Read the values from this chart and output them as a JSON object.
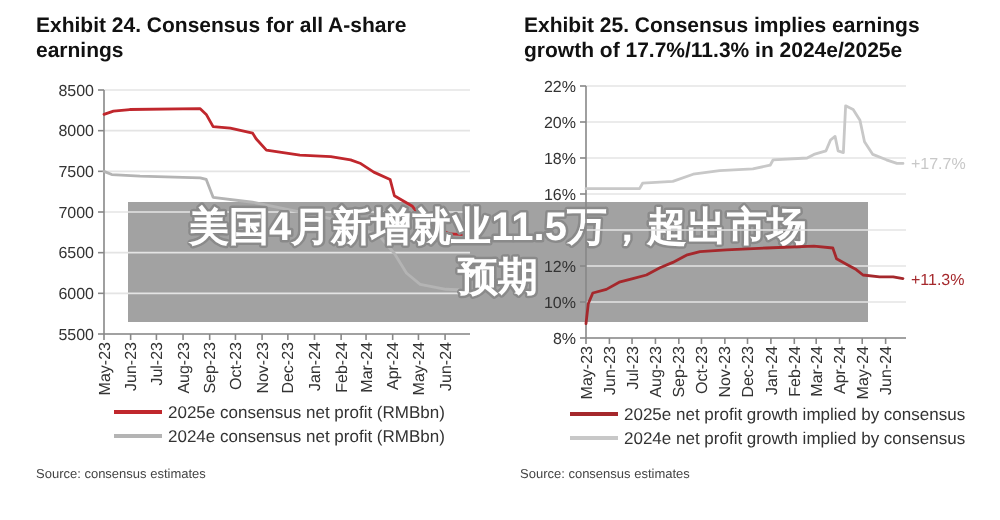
{
  "chart_data": [
    {
      "type": "line",
      "title": "Exhibit 24. Consensus for all A-share earnings",
      "xlim": [
        "2023-05-01",
        "2024-06-30"
      ],
      "ylim": [
        5500,
        8500
      ],
      "yticks": [
        5500,
        6000,
        6500,
        7000,
        7500,
        8000,
        8500
      ],
      "xticks": [
        {
          "value": "2023-05",
          "label": "May-23"
        },
        {
          "value": "2023-06",
          "label": "Jun-23"
        },
        {
          "value": "2023-07",
          "label": "Jul-23"
        },
        {
          "value": "2023-08",
          "label": "Aug-23"
        },
        {
          "value": "2023-09",
          "label": "Sep-23"
        },
        {
          "value": "2023-10",
          "label": "Oct-23"
        },
        {
          "value": "2023-11",
          "label": "Nov-23"
        },
        {
          "value": "2023-12",
          "label": "Dec-23"
        },
        {
          "value": "2024-01",
          "label": "Jan-24"
        },
        {
          "value": "2024-02",
          "label": "Feb-24"
        },
        {
          "value": "2024-03",
          "label": "Mar-24"
        },
        {
          "value": "2024-04",
          "label": "Apr-24"
        },
        {
          "value": "2024-05",
          "label": "May-24"
        },
        {
          "value": "2024-06",
          "label": "Jun-24"
        }
      ],
      "grid": "y",
      "legend": "bottom",
      "series": [
        {
          "name": "2025e consensus net profit (RMBbn)",
          "color": "#c0272d",
          "x": [
            "2023-05-01",
            "2023-05-12",
            "2023-05-31",
            "2023-08-21",
            "2023-08-28",
            "2023-09-05",
            "2023-09-25",
            "2023-10-21",
            "2023-10-25",
            "2023-11-06",
            "2023-12-15",
            "2024-01-20",
            "2024-02-12",
            "2024-02-23",
            "2024-03-10",
            "2024-03-29",
            "2024-04-03",
            "2024-04-24",
            "2024-05-10",
            "2024-06-07",
            "2024-06-28"
          ],
          "values": [
            8200,
            8240,
            8260,
            8270,
            8200,
            8050,
            8030,
            7970,
            7900,
            7760,
            7700,
            7680,
            7640,
            7600,
            7490,
            7400,
            7200,
            7070,
            6850,
            6730,
            6720
          ]
        },
        {
          "name": "2024e consensus net profit (RMBbn)",
          "color": "#b4b4b4",
          "x": [
            "2023-05-01",
            "2023-05-10",
            "2023-06-12",
            "2023-08-21",
            "2023-08-28",
            "2023-09-05",
            "2023-10-21",
            "2023-11-22",
            "2024-01-08",
            "2024-02-12",
            "2024-03-17",
            "2024-04-03",
            "2024-04-17",
            "2024-05-03",
            "2024-06-02",
            "2024-06-28"
          ],
          "values": [
            7500,
            7460,
            7440,
            7420,
            7400,
            7180,
            7120,
            7050,
            6950,
            6850,
            6700,
            6490,
            6250,
            6110,
            6050,
            6040
          ]
        }
      ],
      "annotations": [
        "Source: consensus estimates",
        "美国4月新增就业11.5万，超出市场预期"
      ]
    },
    {
      "type": "line",
      "title": "Exhibit 25. Consensus implies earnings growth of 17.7%/11.3% in 2024e/2025e",
      "xlim": [
        "2023-05-01",
        "2024-06-28"
      ],
      "ylim": [
        8,
        22
      ],
      "yticks": [
        {
          "value": 8,
          "label": "8%"
        },
        {
          "value": 10,
          "label": "10%"
        },
        {
          "value": 12,
          "label": "12%"
        },
        {
          "value": 14,
          "label": null
        },
        {
          "value": 16,
          "label": "16%"
        },
        {
          "value": 18,
          "label": "18%"
        },
        {
          "value": 20,
          "label": "20%"
        },
        {
          "value": 22,
          "label": "22%"
        }
      ],
      "xticks": [
        {
          "value": "2023-05",
          "label": "May-23"
        },
        {
          "value": "2023-06",
          "label": "Jun-23"
        },
        {
          "value": "2023-07",
          "label": "Jul-23"
        },
        {
          "value": "2023-08",
          "label": "Aug-23"
        },
        {
          "value": "2023-09",
          "label": "Sep-23"
        },
        {
          "value": "2023-10",
          "label": "Oct-23"
        },
        {
          "value": "2023-11",
          "label": "Nov-23"
        },
        {
          "value": "2023-12",
          "label": "Dec-23"
        },
        {
          "value": "2024-01",
          "label": "Jan-24"
        },
        {
          "value": "2024-02",
          "label": "Feb-24"
        },
        {
          "value": "2024-03",
          "label": "Mar-24"
        },
        {
          "value": "2024-04",
          "label": "Apr-24"
        },
        {
          "value": "2024-05",
          "label": "May-24"
        },
        {
          "value": "2024-06",
          "label": "Jun-24"
        }
      ],
      "grid": "y",
      "legend": "bottom",
      "series": [
        {
          "name": "2025e net profit growth implied by consensus",
          "color": "#a5282c",
          "x": [
            "2023-05-01",
            "2023-05-04",
            "2023-05-10",
            "2023-05-28",
            "2023-06-14",
            "2023-07-02",
            "2023-07-20",
            "2023-08-07",
            "2023-08-24",
            "2023-09-11",
            "2023-09-29",
            "2023-11-03",
            "2023-12-26",
            "2024-02-27",
            "2024-03-23",
            "2024-03-28",
            "2024-04-10",
            "2024-04-23",
            "2024-05-02",
            "2024-05-24",
            "2024-06-11",
            "2024-06-24"
          ],
          "values": [
            8.8,
            9.9,
            10.5,
            10.7,
            11.1,
            11.3,
            11.5,
            11.9,
            12.2,
            12.6,
            12.8,
            12.9,
            13.0,
            13.1,
            13.0,
            12.4,
            12.1,
            11.8,
            11.5,
            11.4,
            11.4,
            11.3
          ]
        },
        {
          "name": "2024e net profit growth implied by consensus",
          "color": "#c8c8c8",
          "x": [
            "2023-05-01",
            "2023-07-11",
            "2023-07-15",
            "2023-08-24",
            "2023-09-20",
            "2023-10-25",
            "2023-12-08",
            "2023-12-31",
            "2024-01-04",
            "2024-02-18",
            "2024-02-27",
            "2024-03-14",
            "2024-03-20",
            "2024-03-26",
            "2024-03-30",
            "2024-04-06",
            "2024-04-09",
            "2024-04-19",
            "2024-04-28",
            "2024-05-04",
            "2024-05-15",
            "2024-06-02",
            "2024-06-16",
            "2024-06-24"
          ],
          "values": [
            16.3,
            16.3,
            16.6,
            16.7,
            17.1,
            17.3,
            17.4,
            17.6,
            17.9,
            18.0,
            18.2,
            18.4,
            19.0,
            19.2,
            18.4,
            18.3,
            20.9,
            20.7,
            20.1,
            18.9,
            18.2,
            17.9,
            17.7,
            17.7
          ]
        }
      ],
      "annotations": [
        {
          "text": "+11.3%",
          "x": "2024-06-24",
          "y": 11.3
        },
        {
          "text": "+17.7%",
          "x": "2024-06-24",
          "y": 17.7
        },
        "Source: consensus estimates"
      ]
    }
  ]
}
